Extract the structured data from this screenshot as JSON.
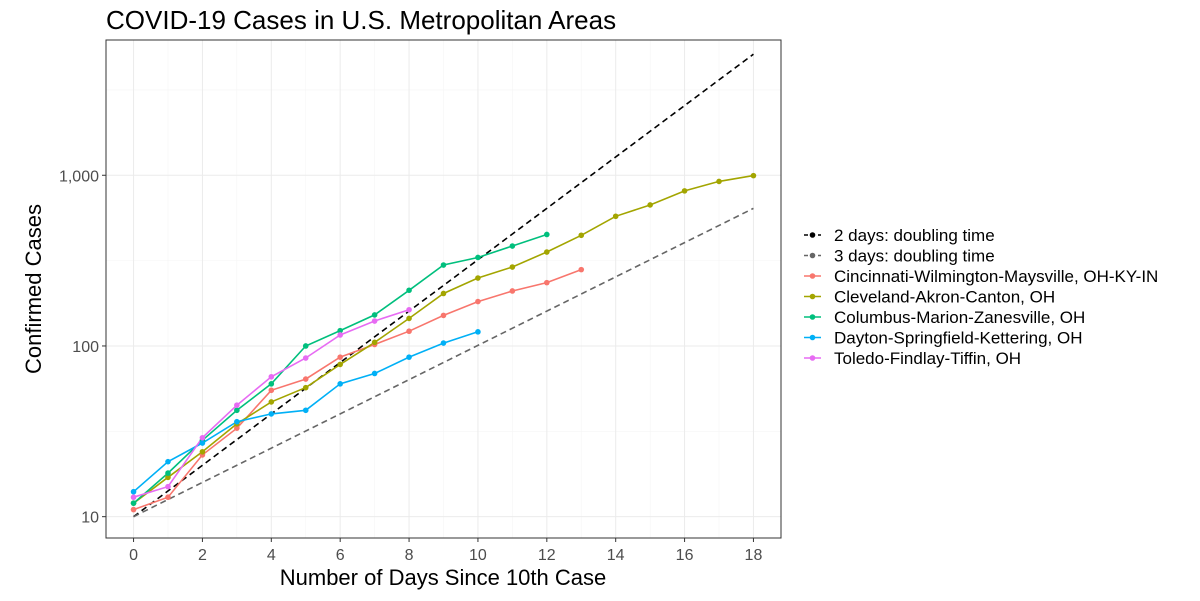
{
  "chart_data": {
    "type": "line",
    "title": "COVID-19 Cases in U.S. Metropolitan Areas",
    "xlabel": "Number of Days Since 10th Case",
    "ylabel": "Confirmed Cases",
    "xlim": [
      -0.8,
      18.8
    ],
    "ylim": [
      7.5,
      6200
    ],
    "y_scale": "log10",
    "x_ticks": [
      0,
      2,
      4,
      6,
      8,
      10,
      12,
      14,
      16,
      18
    ],
    "y_ticks": [
      10,
      100,
      1000
    ],
    "y_tick_labels": [
      "10",
      "100",
      "1,000"
    ],
    "grid": true,
    "legend_position": "right",
    "reference_lines": [
      {
        "name": "2 days: doubling time",
        "color": "#000000",
        "dash": "dashed",
        "start": 10,
        "doubling_days": 2,
        "x_range": [
          0,
          18
        ]
      },
      {
        "name": "3 days: doubling time",
        "color": "#666666",
        "dash": "dashed",
        "start": 10,
        "doubling_days": 3,
        "x_range": [
          0,
          18
        ]
      }
    ],
    "series": [
      {
        "name": "Cincinnati-Wilmington-Maysville, OH-KY-IN",
        "color": "#F8766D",
        "x": [
          0,
          1,
          2,
          3,
          4,
          5,
          6,
          7,
          8,
          9,
          10,
          11,
          12,
          13
        ],
        "values": [
          11,
          13,
          23,
          33,
          55,
          64,
          86,
          102,
          122,
          151,
          182,
          210,
          235,
          280
        ]
      },
      {
        "name": "Cleveland-Akron-Canton, OH",
        "color": "#A3A500",
        "x": [
          0,
          1,
          2,
          3,
          4,
          5,
          6,
          7,
          8,
          9,
          10,
          11,
          12,
          13,
          14,
          15,
          16,
          17,
          18
        ],
        "values": [
          12,
          17,
          24,
          35,
          47,
          57,
          78,
          105,
          145,
          203,
          250,
          290,
          355,
          445,
          575,
          670,
          810,
          920,
          995
        ]
      },
      {
        "name": "Columbus-Marion-Zanesville, OH",
        "color": "#00BF7D",
        "x": [
          0,
          1,
          2,
          3,
          4,
          5,
          6,
          7,
          8,
          9,
          10,
          11,
          12
        ],
        "values": [
          12,
          18,
          28,
          42,
          60,
          100,
          123,
          152,
          212,
          298,
          330,
          385,
          450
        ]
      },
      {
        "name": "Dayton-Springfield-Kettering, OH",
        "color": "#00B0F6",
        "x": [
          0,
          1,
          2,
          3,
          4,
          5,
          6,
          7,
          8,
          9,
          10
        ],
        "values": [
          14,
          21,
          27,
          36,
          40,
          42,
          60,
          69,
          86,
          104,
          121
        ]
      },
      {
        "name": "Toledo-Findlay-Tiffin, OH",
        "color": "#E76BF3",
        "x": [
          0,
          1,
          2,
          3,
          4,
          5,
          6,
          7,
          8
        ],
        "values": [
          13,
          15,
          29,
          45,
          66,
          85,
          116,
          140,
          163
        ]
      }
    ]
  }
}
